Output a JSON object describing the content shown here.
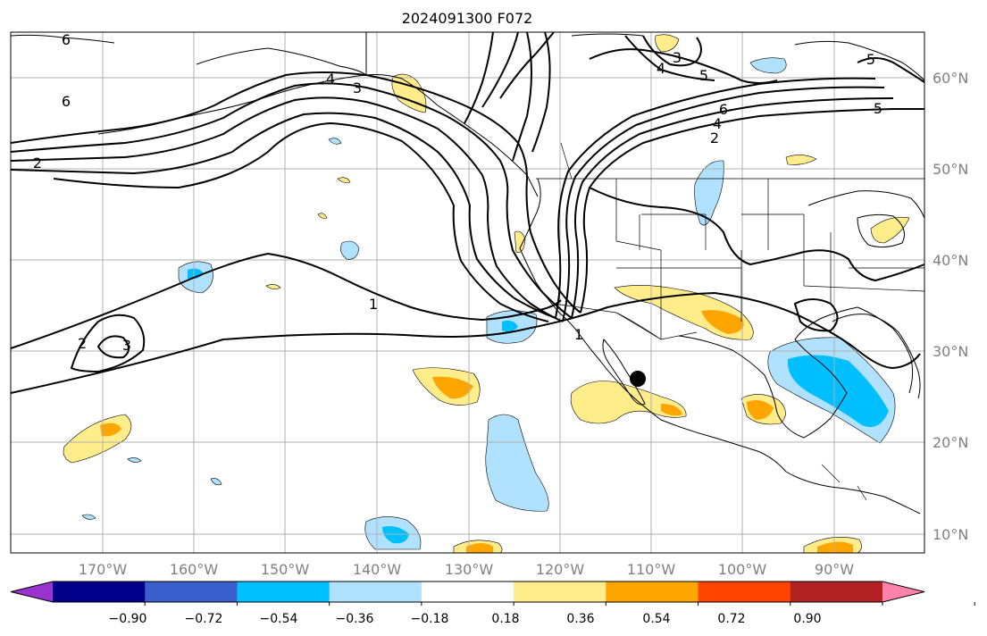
{
  "title": "2024091300 F072",
  "map": {
    "type": "forecast-anomaly-map",
    "lon_labels": [
      "170°W",
      "160°W",
      "150°W",
      "140°W",
      "130°W",
      "120°W",
      "110°W",
      "100°W",
      "90°W"
    ],
    "lat_labels": [
      "60°N",
      "50°N",
      "40°N",
      "30°N",
      "20°N",
      "10°N"
    ],
    "contour_labels": [
      "6",
      "4",
      "3",
      "2",
      "6",
      "3",
      "4",
      "5",
      "6",
      "4",
      "2",
      "5",
      "5",
      "1",
      "1",
      "2",
      "3"
    ],
    "marker": "filled-circle"
  },
  "colorbar": {
    "ticks": [
      "−0.90",
      "−0.72",
      "−0.54",
      "−0.36",
      "−0.18",
      "0.18",
      "0.36",
      "0.54",
      "0.72",
      "0.90"
    ],
    "colors": [
      "#9a32cd",
      "#00008b",
      "#3a5fcd",
      "#00bfff",
      "#b0e2ff",
      "#ffffff",
      "#ffec8b",
      "#ffa500",
      "#ff4500",
      "#b22222",
      "#ff82ab"
    ]
  }
}
